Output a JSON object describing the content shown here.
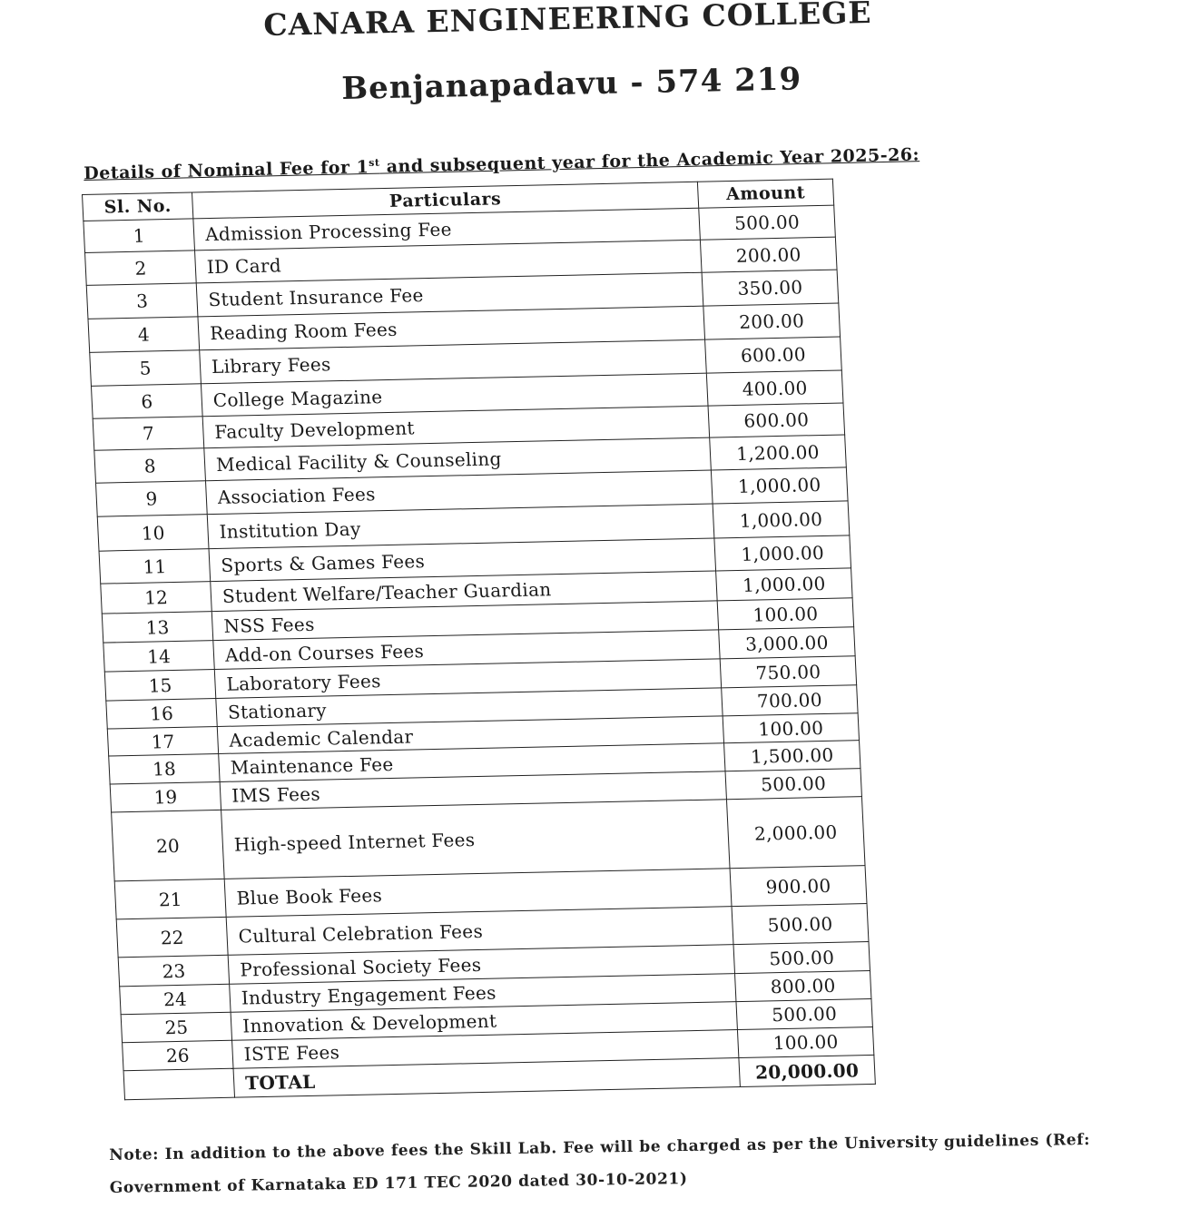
{
  "header": {
    "college": "CANARA ENGINEERING COLLEGE",
    "location": "Benjanapadavu - 574 219"
  },
  "heading": {
    "prefix": "Details of Nominal Fee for 1",
    "sup": "st",
    "suffix": " and subsequent year for the Academic Year 2025-26:"
  },
  "table": {
    "columns": [
      "Sl. No.",
      "Particulars",
      "Amount"
    ],
    "rows": [
      {
        "sl": "1",
        "particular": "Admission Processing Fee",
        "amount": "500.00"
      },
      {
        "sl": "2",
        "particular": "ID Card",
        "amount": "200.00"
      },
      {
        "sl": "3",
        "particular": "Student Insurance Fee",
        "amount": "350.00"
      },
      {
        "sl": "4",
        "particular": "Reading Room Fees",
        "amount": "200.00"
      },
      {
        "sl": "5",
        "particular": "Library Fees",
        "amount": "600.00"
      },
      {
        "sl": "6",
        "particular": "College Magazine",
        "amount": "400.00"
      },
      {
        "sl": "7",
        "particular": "Faculty Development",
        "amount": "600.00"
      },
      {
        "sl": "8",
        "particular": "Medical Facility & Counseling",
        "amount": "1,200.00"
      },
      {
        "sl": "9",
        "particular": "Association Fees",
        "amount": "1,000.00"
      },
      {
        "sl": "10",
        "particular": "Institution Day",
        "amount": "1,000.00"
      },
      {
        "sl": "11",
        "particular": "Sports & Games Fees",
        "amount": "1,000.00"
      },
      {
        "sl": "12",
        "particular": "Student Welfare/Teacher Guardian",
        "amount": "1,000.00"
      },
      {
        "sl": "13",
        "particular": "NSS Fees",
        "amount": "100.00"
      },
      {
        "sl": "14",
        "particular": "Add-on Courses Fees",
        "amount": "3,000.00"
      },
      {
        "sl": "15",
        "particular": "Laboratory Fees",
        "amount": "750.00"
      },
      {
        "sl": "16",
        "particular": "Stationary",
        "amount": "700.00"
      },
      {
        "sl": "17",
        "particular": "Academic Calendar",
        "amount": "100.00"
      },
      {
        "sl": "18",
        "particular": "Maintenance Fee",
        "amount": "1,500.00"
      },
      {
        "sl": "19",
        "particular": "IMS Fees",
        "amount": "500.00"
      },
      {
        "sl": "20",
        "particular": "High-speed Internet Fees",
        "amount": "2,000.00"
      },
      {
        "sl": "21",
        "particular": "Blue Book Fees",
        "amount": "900.00"
      },
      {
        "sl": "22",
        "particular": "Cultural Celebration Fees",
        "amount": "500.00"
      },
      {
        "sl": "23",
        "particular": "Professional Society Fees",
        "amount": "500.00"
      },
      {
        "sl": "24",
        "particular": "Industry Engagement Fees",
        "amount": "800.00"
      },
      {
        "sl": "25",
        "particular": "Innovation & Development",
        "amount": "500.00"
      },
      {
        "sl": "26",
        "particular": "ISTE Fees",
        "amount": "100.00"
      }
    ],
    "total_label": "TOTAL",
    "total_amount": "20,000.00"
  },
  "note": "Note: In addition to the above fees the Skill Lab. Fee will be charged as per the University guidelines (Ref: Government of Karnataka ED 171 TEC 2020 dated 30-10-2021)"
}
